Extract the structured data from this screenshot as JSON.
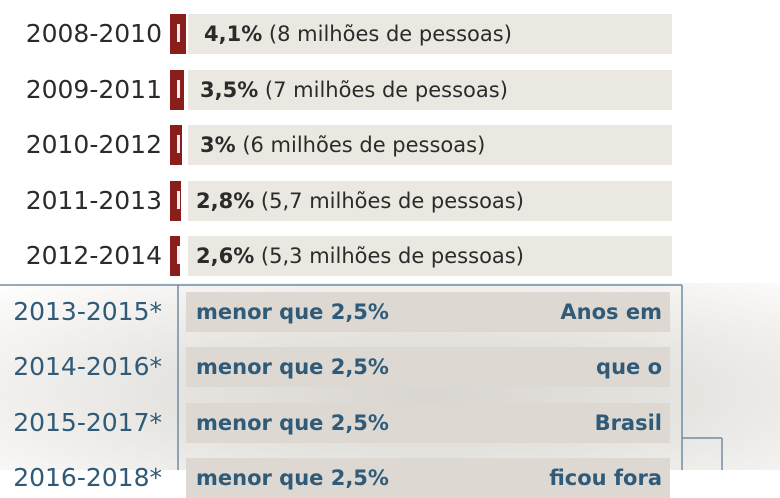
{
  "chart_data": {
    "type": "bar",
    "categories": [
      "2008-2010",
      "2009-2011",
      "2010-2012",
      "2011-2013",
      "2012-2014",
      "2013-2015*",
      "2014-2016*",
      "2015-2017*",
      "2016-2018*"
    ],
    "values": [
      4.1,
      3.5,
      3,
      2.8,
      2.6,
      null,
      null,
      null,
      null
    ],
    "value_labels": [
      "4,1%",
      "3,5%",
      "3%",
      "2,8%",
      "2,6%",
      "menor que 2,5%",
      "menor que 2,5%",
      "menor que 2,5%",
      "menor que 2,5%"
    ],
    "population_labels": [
      "(8 milhões de pessoas)",
      "(7 milhões de pessoas)",
      "(6 milhões de pessoas)",
      "(5,7 milhões de pessoas)",
      "(5,3 milhões de pessoas)",
      "",
      "",
      "",
      ""
    ],
    "annotations": [
      "Anos em",
      "que o",
      "Brasil",
      "ficou fora"
    ],
    "colors": {
      "bar": "#8a1e1c",
      "row_background": "#ebe8e2",
      "label_dark": "#2b2b2b",
      "label_estimate": "#2f5a78",
      "estimate_frame": "#6d8ea6"
    }
  }
}
